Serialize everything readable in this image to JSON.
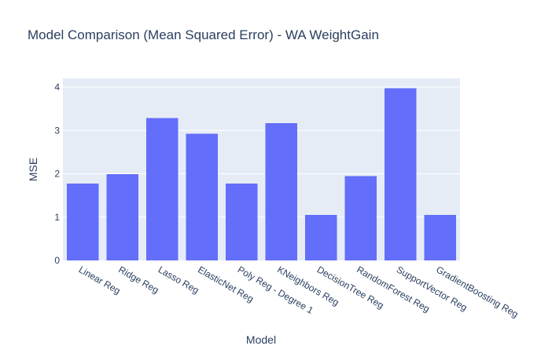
{
  "chart_data": {
    "type": "bar",
    "title": "Model Comparison (Mean Squared Error) - WA WeightGain",
    "xlabel": "Model",
    "ylabel": "MSE",
    "categories": [
      "Linear Reg",
      "Ridge Reg",
      "Lasso Reg",
      "ElasticNet Reg",
      "Poly Reg - Degree 1",
      "KNeighbors Reg",
      "DecisionTree Reg",
      "RandomForest Reg",
      "SupportVector Reg",
      "GradientBoosting Reg"
    ],
    "values": [
      1.77,
      1.99,
      3.29,
      2.92,
      1.77,
      3.17,
      1.05,
      1.95,
      3.97,
      1.05
    ],
    "ylim": [
      0,
      4.2
    ],
    "yticks": [
      0,
      1,
      2,
      3,
      4
    ],
    "grid": true,
    "bar_color": "#636efa",
    "plot_bg": "#e5ecf6"
  }
}
